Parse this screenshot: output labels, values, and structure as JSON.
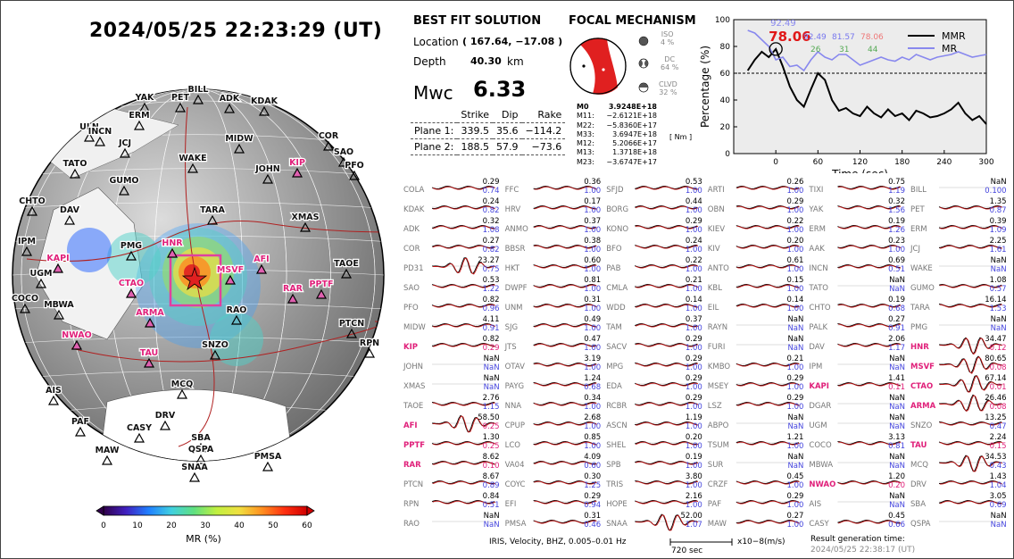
{
  "header": {
    "datetime": "2024/05/25  22:23:29 (UT)"
  },
  "solution": {
    "heading": "BEST FIT SOLUTION",
    "location_label": "Location",
    "location_value": "( 167.64,  −17.08 )",
    "depth_label": "Depth",
    "depth_value": "40.30",
    "depth_unit": "km",
    "mwc_label": "Mwc",
    "mwc_value": "6.33",
    "col_strike": "Strike",
    "col_dip": "Dip",
    "col_rake": "Rake",
    "planes": [
      {
        "name": "Plane 1:",
        "strike": "339.5",
        "dip": "35.6",
        "rake": "−114.2"
      },
      {
        "name": "Plane 2:",
        "strike": "188.5",
        "dip": "57.9",
        "rake": "−73.6"
      }
    ]
  },
  "focal": {
    "heading": "FOCAL MECHANISM",
    "components": [
      {
        "name": "ISO",
        "pct": "4 %"
      },
      {
        "name": "DC",
        "pct": "64 %"
      },
      {
        "name": "CLVD",
        "pct": "32 %"
      }
    ],
    "tensor": [
      {
        "k": "M0",
        "v": "3.9248E+18"
      },
      {
        "k": "M11:",
        "v": "−2.6121E+18"
      },
      {
        "k": "M22:",
        "v": "−5.8360E+17"
      },
      {
        "k": "M33:",
        "v": "3.6947E+18"
      },
      {
        "k": "M12:",
        "v": "5.2066E+17"
      },
      {
        "k": "M13:",
        "v": "1.3718E+18"
      },
      {
        "k": "M23:",
        "v": "−3.6747E+17"
      }
    ],
    "unit": "[ Nm ]"
  },
  "chart_data": {
    "type": "line",
    "xlabel": "Time (sec)",
    "ylabel": "Percentage (%)",
    "xlim": [
      -60,
      300
    ],
    "ylim": [
      0,
      100
    ],
    "xticks": [
      0,
      60,
      120,
      180,
      240,
      300
    ],
    "yticks": [
      0,
      20,
      40,
      60,
      80,
      100
    ],
    "threshold": 60,
    "peak_label": "78.06",
    "peak_x": 0,
    "peak_y": 78.06,
    "top_label": "92.49",
    "legend": [
      "MMR",
      "MR"
    ],
    "annotations": [
      {
        "text": "92.49",
        "color": "#7777ee"
      },
      {
        "text": "81.57",
        "color": "#7777ee"
      },
      {
        "text": "78.06",
        "color": "#ee7777"
      },
      {
        "text": "26",
        "color": "#55aa55"
      },
      {
        "text": "31",
        "color": "#55aa55"
      },
      {
        "text": "44",
        "color": "#55aa55"
      }
    ],
    "series": [
      {
        "name": "MMR",
        "color": "#000000",
        "x": [
          -40,
          -30,
          -20,
          -10,
          0,
          10,
          20,
          30,
          40,
          50,
          60,
          70,
          80,
          90,
          100,
          110,
          120,
          130,
          140,
          150,
          160,
          170,
          180,
          190,
          200,
          210,
          220,
          230,
          240,
          250,
          260,
          270,
          280,
          290,
          300
        ],
        "y": [
          62,
          70,
          76,
          72,
          78,
          65,
          50,
          40,
          35,
          48,
          60,
          55,
          40,
          32,
          34,
          30,
          28,
          35,
          30,
          27,
          33,
          28,
          30,
          25,
          32,
          30,
          27,
          28,
          30,
          33,
          38,
          30,
          25,
          28,
          22
        ]
      },
      {
        "name": "MR",
        "color": "#8888ee",
        "x": [
          -40,
          -30,
          -20,
          -10,
          0,
          10,
          20,
          30,
          40,
          50,
          60,
          70,
          80,
          90,
          100,
          110,
          120,
          130,
          140,
          150,
          160,
          170,
          180,
          190,
          200,
          210,
          220,
          230,
          240,
          250,
          260,
          270,
          280,
          290,
          300
        ],
        "y": [
          92,
          90,
          85,
          80,
          70,
          72,
          65,
          66,
          62,
          70,
          76,
          72,
          70,
          74,
          74,
          70,
          66,
          68,
          70,
          72,
          70,
          69,
          72,
          70,
          74,
          72,
          70,
          72,
          73,
          74,
          76,
          74,
          72,
          73,
          74
        ]
      }
    ]
  },
  "colorbar": {
    "ticks": [
      "0",
      "10",
      "20",
      "30",
      "40",
      "50",
      "60"
    ],
    "label": "MR (%)"
  },
  "globe": {
    "stations": [
      {
        "n": "BILL",
        "h": false
      },
      {
        "n": "PET",
        "h": false
      },
      {
        "n": "YAK",
        "h": false
      },
      {
        "n": "ADK",
        "h": false
      },
      {
        "n": "KDAK",
        "h": false
      },
      {
        "n": "ERM",
        "h": false
      },
      {
        "n": "ULN",
        "h": false
      },
      {
        "n": "INCN",
        "h": false
      },
      {
        "n": "JCJ",
        "h": false
      },
      {
        "n": "MIDW",
        "h": false
      },
      {
        "n": "COR",
        "h": false
      },
      {
        "n": "SAO",
        "h": false
      },
      {
        "n": "PFO",
        "h": false
      },
      {
        "n": "TATO",
        "h": false
      },
      {
        "n": "KIP",
        "h": true
      },
      {
        "n": "WAKE",
        "h": false
      },
      {
        "n": "JOHN",
        "h": false
      },
      {
        "n": "GUMO",
        "h": false
      },
      {
        "n": "CHTO",
        "h": false
      },
      {
        "n": "TARA",
        "h": false
      },
      {
        "n": "DAV",
        "h": false
      },
      {
        "n": "XMAS",
        "h": false
      },
      {
        "n": "IPM",
        "h": false
      },
      {
        "n": "PMG",
        "h": false
      },
      {
        "n": "HNR",
        "h": true
      },
      {
        "n": "KAPI",
        "h": true
      },
      {
        "n": "UGM",
        "h": false
      },
      {
        "n": "AFI",
        "h": true
      },
      {
        "n": "MSVF",
        "h": true
      },
      {
        "n": "TAOE",
        "h": false
      },
      {
        "n": "CTAO",
        "h": true
      },
      {
        "n": "RAR",
        "h": true
      },
      {
        "n": "PPTF",
        "h": true
      },
      {
        "n": "COCO",
        "h": false
      },
      {
        "n": "MBWA",
        "h": false
      },
      {
        "n": "RAO",
        "h": false
      },
      {
        "n": "ARMA",
        "h": true
      },
      {
        "n": "NWAO",
        "h": true
      },
      {
        "n": "PTCN",
        "h": false
      },
      {
        "n": "SNZO",
        "h": false
      },
      {
        "n": "RPN",
        "h": false
      },
      {
        "n": "TAU",
        "h": true
      },
      {
        "n": "MCQ",
        "h": false
      },
      {
        "n": "AIS",
        "h": false
      },
      {
        "n": "PAF",
        "h": false
      },
      {
        "n": "DRV",
        "h": false
      },
      {
        "n": "CASY",
        "h": false
      },
      {
        "n": "SBA",
        "h": false
      },
      {
        "n": "MAW",
        "h": false
      },
      {
        "n": "QSPA",
        "h": false
      },
      {
        "n": "PMSA",
        "h": false
      },
      {
        "n": "SNAA",
        "h": false
      }
    ]
  },
  "waveforms": {
    "columns": [
      [
        {
          "n": "COLA",
          "a": "0.29",
          "b": "0.74"
        },
        {
          "n": "KDAK",
          "a": "0.24",
          "b": "0.82"
        },
        {
          "n": "ADK",
          "a": "0.32",
          "b": "1.08"
        },
        {
          "n": "COR",
          "a": "0.27",
          "b": "0.82"
        },
        {
          "n": "PD31",
          "a": "23.27",
          "b": "0.75"
        },
        {
          "n": "SAO",
          "a": "0.53",
          "b": "1.22"
        },
        {
          "n": "PFO",
          "a": "0.82",
          "b": "0.96"
        },
        {
          "n": "MIDW",
          "a": "4.11",
          "b": "0.91"
        },
        {
          "n": "KIP",
          "a": "0.82",
          "b": "0.29",
          "h": true
        },
        {
          "n": "JOHN",
          "a": "NaN",
          "b": "NaN"
        },
        {
          "n": "XMAS",
          "a": "NaN",
          "b": "NaN"
        },
        {
          "n": "TAOE",
          "a": "2.76",
          "b": "1.15"
        },
        {
          "n": "AFI",
          "a": "58.50",
          "b": "0.25",
          "h": true
        },
        {
          "n": "PPTF",
          "a": "1.30",
          "b": "0.25",
          "h": true
        },
        {
          "n": "RAR",
          "a": "8.62",
          "b": "0.10",
          "h": true
        },
        {
          "n": "PTCN",
          "a": "8.67",
          "b": "0.89"
        },
        {
          "n": "RPN",
          "a": "0.84",
          "b": "0.51"
        },
        {
          "n": "RAO",
          "a": "NaN",
          "b": "NaN"
        }
      ],
      [
        {
          "n": "FFC",
          "a": "0.36",
          "b": "1.00"
        },
        {
          "n": "HRV",
          "a": "0.17",
          "b": "1.00"
        },
        {
          "n": "ANMO",
          "a": "0.37",
          "b": "1.00"
        },
        {
          "n": "BBSR",
          "a": "0.38",
          "b": "1.00"
        },
        {
          "n": "HKT",
          "a": "0.60",
          "b": "1.00"
        },
        {
          "n": "DWPF",
          "a": "0.81",
          "b": "1.00"
        },
        {
          "n": "UNM",
          "a": "0.31",
          "b": "1.00"
        },
        {
          "n": "SJG",
          "a": "0.49",
          "b": "1.00"
        },
        {
          "n": "JTS",
          "a": "0.47",
          "b": "1.00"
        },
        {
          "n": "OTAV",
          "a": "3.19",
          "b": "1.00"
        },
        {
          "n": "PAYG",
          "a": "1.24",
          "b": "0.68"
        },
        {
          "n": "NNA",
          "a": "0.34",
          "b": "1.00"
        },
        {
          "n": "CPUP",
          "a": "2.68",
          "b": "1.00"
        },
        {
          "n": "LCO",
          "a": "0.85",
          "b": "1.00"
        },
        {
          "n": "VA04",
          "a": "4.09",
          "b": "0.60"
        },
        {
          "n": "COYC",
          "a": "0.30",
          "b": "1.25"
        },
        {
          "n": "EFI",
          "a": "0.29",
          "b": "0.94"
        },
        {
          "n": "PMSA",
          "a": "0.31",
          "b": "0.46"
        }
      ],
      [
        {
          "n": "SFJD",
          "a": "0.53",
          "b": "1.00"
        },
        {
          "n": "BORG",
          "a": "0.44",
          "b": "1.00"
        },
        {
          "n": "KONO",
          "a": "0.29",
          "b": "1.00"
        },
        {
          "n": "BFO",
          "a": "0.24",
          "b": "1.00"
        },
        {
          "n": "PAB",
          "a": "0.22",
          "b": "1.00"
        },
        {
          "n": "CMLA",
          "a": "0.21",
          "b": "1.00"
        },
        {
          "n": "WDD",
          "a": "0.14",
          "b": "1.00"
        },
        {
          "n": "TAM",
          "a": "0.37",
          "b": "1.00"
        },
        {
          "n": "SACV",
          "a": "0.29",
          "b": "1.00"
        },
        {
          "n": "MPG",
          "a": "0.29",
          "b": "1.00"
        },
        {
          "n": "EDA",
          "a": "0.29",
          "b": "1.00"
        },
        {
          "n": "RCBR",
          "a": "0.29",
          "b": "1.00"
        },
        {
          "n": "ASCN",
          "a": "1.19",
          "b": "1.00"
        },
        {
          "n": "SHEL",
          "a": "0.20",
          "b": "1.00"
        },
        {
          "n": "SPB",
          "a": "0.19",
          "b": "1.00"
        },
        {
          "n": "TRIS",
          "a": "3.80",
          "b": "1.00"
        },
        {
          "n": "HOPE",
          "a": "2.16",
          "b": "1.00"
        },
        {
          "n": "SNAA",
          "a": "52.00",
          "b": "1.07"
        }
      ],
      [
        {
          "n": "ARTI",
          "a": "0.26",
          "b": "1.00"
        },
        {
          "n": "OBN",
          "a": "0.29",
          "b": "1.00"
        },
        {
          "n": "KIEV",
          "a": "0.22",
          "b": "1.00"
        },
        {
          "n": "KIV",
          "a": "0.20",
          "b": "1.00"
        },
        {
          "n": "ANTO",
          "a": "0.61",
          "b": "1.00"
        },
        {
          "n": "KBL",
          "a": "0.15",
          "b": "1.00"
        },
        {
          "n": "EIL",
          "a": "0.14",
          "b": "1.00"
        },
        {
          "n": "RAYN",
          "a": "NaN",
          "b": "NaN"
        },
        {
          "n": "FURI",
          "a": "NaN",
          "b": "NaN"
        },
        {
          "n": "KMBO",
          "a": "0.21",
          "b": "1.00"
        },
        {
          "n": "MSEY",
          "a": "0.29",
          "b": "1.00"
        },
        {
          "n": "LSZ",
          "a": "0.29",
          "b": "1.00"
        },
        {
          "n": "ABPO",
          "a": "NaN",
          "b": "NaN"
        },
        {
          "n": "TSUM",
          "a": "1.21",
          "b": "1.00"
        },
        {
          "n": "SUR",
          "a": "NaN",
          "b": "NaN"
        },
        {
          "n": "CRZF",
          "a": "0.45",
          "b": "1.00"
        },
        {
          "n": "PAF",
          "a": "0.29",
          "b": "1.00"
        },
        {
          "n": "MAW",
          "a": "0.27",
          "b": "1.00"
        }
      ],
      [
        {
          "n": "TIXI",
          "a": "0.75",
          "b": "1.19"
        },
        {
          "n": "YAK",
          "a": "0.32",
          "b": "1.56"
        },
        {
          "n": "ERM",
          "a": "0.19",
          "b": "1.26"
        },
        {
          "n": "AAK",
          "a": "0.23",
          "b": "1.00"
        },
        {
          "n": "INCN",
          "a": "0.69",
          "b": "0.51"
        },
        {
          "n": "TATO",
          "a": "NaN",
          "b": "NaN"
        },
        {
          "n": "CHTO",
          "a": "0.19",
          "b": "0.68"
        },
        {
          "n": "PALK",
          "a": "0.27",
          "b": "0.91"
        },
        {
          "n": "DAV",
          "a": "2.06",
          "b": "1.17"
        },
        {
          "n": "IPM",
          "a": "NaN",
          "b": "NaN"
        },
        {
          "n": "KAPI",
          "a": "1.41",
          "b": "0.11",
          "h": true
        },
        {
          "n": "DGAR",
          "a": "NaN",
          "b": "NaN"
        },
        {
          "n": "UGM",
          "a": "NaN",
          "b": "NaN"
        },
        {
          "n": "COCO",
          "a": "3.13",
          "b": "0.81"
        },
        {
          "n": "MBWA",
          "a": "NaN",
          "b": "NaN"
        },
        {
          "n": "NWAO",
          "a": "1.20",
          "b": "0.20",
          "h": true
        },
        {
          "n": "AIS",
          "a": "NaN",
          "b": "NaN"
        },
        {
          "n": "CASY",
          "a": "0.45",
          "b": "0.66"
        }
      ],
      [
        {
          "n": "BILL",
          "a": "NaN",
          "b": "0.100"
        },
        {
          "n": "PET",
          "a": "1.35",
          "b": "0.87"
        },
        {
          "n": "ERM",
          "a": "0.39",
          "b": "1.09"
        },
        {
          "n": "JCJ",
          "a": "2.25",
          "b": "1.61"
        },
        {
          "n": "WAKE",
          "a": "NaN",
          "b": "NaN"
        },
        {
          "n": "GUMO",
          "a": "1.08",
          "b": "0.57"
        },
        {
          "n": "TARA",
          "a": "16.14",
          "b": "1.53"
        },
        {
          "n": "PMG",
          "a": "NaN",
          "b": "NaN"
        },
        {
          "n": "HNR",
          "a": "34.47",
          "b": "0.12",
          "h": true
        },
        {
          "n": "MSVF",
          "a": "80.65",
          "b": "0.08",
          "h": true
        },
        {
          "n": "CTAO",
          "a": "67.14",
          "b": "0.01",
          "h": true
        },
        {
          "n": "ARMA",
          "a": "26.46",
          "b": "0.08",
          "h": true
        },
        {
          "n": "SNZO",
          "a": "13.25",
          "b": "0.47"
        },
        {
          "n": "TAU",
          "a": "2.24",
          "b": "0.15",
          "h": true
        },
        {
          "n": "MCQ",
          "a": "34.53",
          "b": "0.43"
        },
        {
          "n": "DRV",
          "a": "1.43",
          "b": "1.04"
        },
        {
          "n": "SBA",
          "a": "3.05",
          "b": "0.69"
        },
        {
          "n": "QSPA",
          "a": "NaN",
          "b": "NaN"
        }
      ]
    ]
  },
  "footer": {
    "source": "IRIS, Velocity,   BHZ, 0.005–0.01 Hz",
    "scale": "720 sec",
    "units": "x10−8(m/s)",
    "result_label": "Result generation time:",
    "result_time": "2024/05/25  22:38:17 (UT)"
  }
}
